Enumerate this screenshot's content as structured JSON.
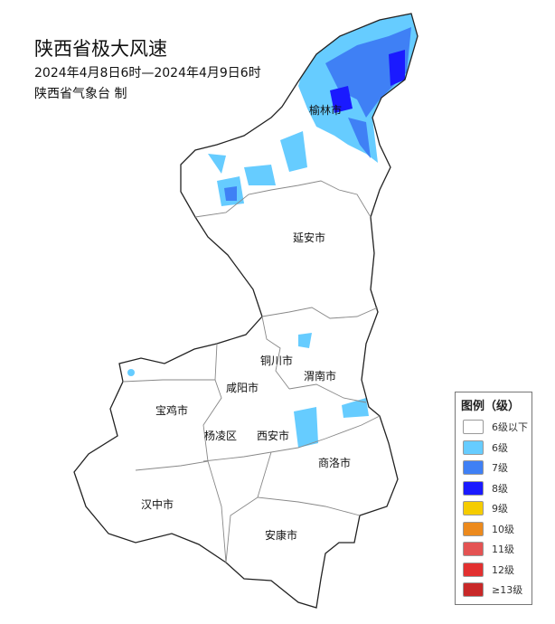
{
  "title": "陕西省极大风速",
  "period": "2024年4月8日6时—2024年4月9日6时",
  "producer": "陕西省气象台 制",
  "cities": [
    "榆林市",
    "延安市",
    "铜川市",
    "渭南市",
    "咸阳市",
    "宝鸡市",
    "杨凌区",
    "西安市",
    "商洛市",
    "汉中市",
    "安康市"
  ],
  "legend": {
    "title": "图例（级）",
    "items": [
      {
        "label": "6级以下",
        "color": "#ffffff"
      },
      {
        "label": "6级",
        "color": "#66ccff"
      },
      {
        "label": "7级",
        "color": "#3f80f5"
      },
      {
        "label": "8级",
        "color": "#1a1aff"
      },
      {
        "label": "9级",
        "color": "#f5cc00"
      },
      {
        "label": "10级",
        "color": "#ec8a1d"
      },
      {
        "label": "11级",
        "color": "#e45353"
      },
      {
        "label": "12级",
        "color": "#e23030"
      },
      {
        "label": "≥13级",
        "color": "#c82828"
      }
    ]
  }
}
